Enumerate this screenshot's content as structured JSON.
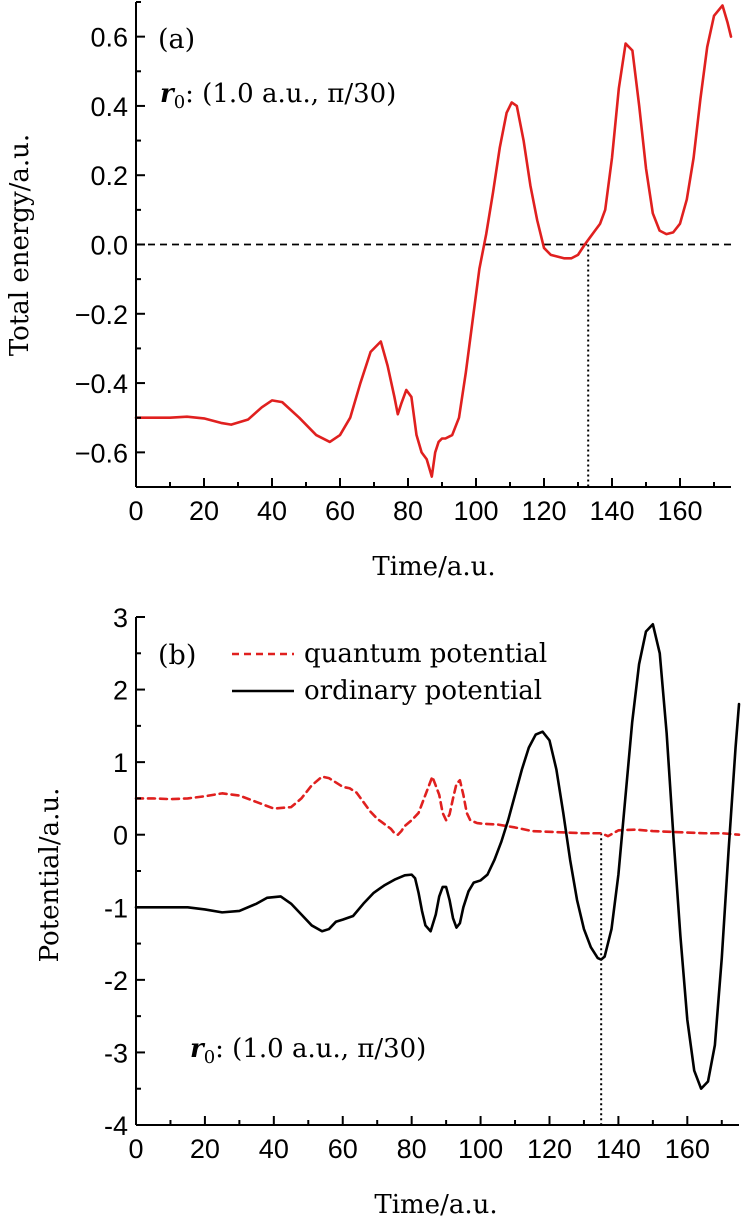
{
  "chart_data": [
    {
      "type": "line",
      "panel_label": "(a)",
      "annotation": {
        "symbol": "r",
        "subscript": "0",
        "text": ": (1.0 a.u., π/30)"
      },
      "xlabel": "Time/a.u.",
      "ylabel": "Total energy/a.u.",
      "xlim": [
        0,
        175
      ],
      "ylim": [
        -0.7,
        0.7
      ],
      "xticks": [
        0,
        20,
        40,
        60,
        80,
        100,
        120,
        140,
        160
      ],
      "yticks": [
        -0.6,
        -0.4,
        -0.2,
        0.0,
        0.2,
        0.4,
        0.6
      ],
      "ytick_labels": [
        "−0.6",
        "−0.4",
        "−0.2",
        "0.0",
        "0.2",
        "0.4",
        "0.6"
      ],
      "reference_line": {
        "y": 0.0,
        "style": "dashed"
      },
      "marker_line": {
        "x": 133,
        "style": "dotted"
      },
      "series": [
        {
          "color": "#e0201f",
          "style": "solid",
          "x": [
            0,
            5,
            10,
            15,
            20,
            25,
            28,
            33,
            37,
            40,
            43,
            48,
            53,
            57,
            60,
            63,
            66,
            69,
            72,
            74,
            76,
            77,
            78,
            79.5,
            81,
            82.5,
            84,
            85.5,
            87,
            88,
            89,
            90,
            91,
            93,
            95,
            97,
            99,
            101,
            103,
            105,
            107,
            109,
            110.5,
            112,
            114,
            116,
            118,
            120,
            122,
            124,
            126,
            128,
            130,
            132,
            133.5,
            135,
            136.5,
            138,
            140,
            142,
            144,
            146,
            148,
            150,
            152,
            154,
            156,
            158,
            160,
            162,
            164,
            166,
            168,
            170,
            172.5,
            174,
            175
          ],
          "y": [
            -0.5,
            -0.5,
            -0.5,
            -0.497,
            -0.502,
            -0.515,
            -0.52,
            -0.505,
            -0.47,
            -0.45,
            -0.455,
            -0.5,
            -0.55,
            -0.57,
            -0.55,
            -0.5,
            -0.4,
            -0.31,
            -0.28,
            -0.35,
            -0.44,
            -0.49,
            -0.46,
            -0.42,
            -0.44,
            -0.55,
            -0.6,
            -0.62,
            -0.67,
            -0.6,
            -0.57,
            -0.56,
            -0.56,
            -0.55,
            -0.5,
            -0.37,
            -0.22,
            -0.07,
            0.03,
            0.15,
            0.28,
            0.38,
            0.41,
            0.4,
            0.3,
            0.17,
            0.07,
            -0.01,
            -0.03,
            -0.035,
            -0.04,
            -0.04,
            -0.03,
            0.0,
            0.02,
            0.04,
            0.06,
            0.1,
            0.25,
            0.45,
            0.58,
            0.56,
            0.4,
            0.22,
            0.09,
            0.04,
            0.03,
            0.035,
            0.06,
            0.13,
            0.25,
            0.42,
            0.57,
            0.66,
            0.69,
            0.64,
            0.6
          ]
        }
      ]
    },
    {
      "type": "line",
      "panel_label": "(b)",
      "annotation": {
        "symbol": "r",
        "subscript": "0",
        "text": ": (1.0 a.u., π/30)"
      },
      "xlabel": "Time/a.u.",
      "ylabel": "Potential/a.u.",
      "xlim": [
        0,
        175
      ],
      "ylim": [
        -4,
        3
      ],
      "xticks": [
        0,
        20,
        40,
        60,
        80,
        100,
        120,
        140,
        160
      ],
      "yticks": [
        -4,
        -3,
        -2,
        -1,
        0,
        1,
        2,
        3
      ],
      "ytick_labels": [
        "-4",
        "-3",
        "-2",
        "-1",
        "0",
        "1",
        "2",
        "3"
      ],
      "marker_line": {
        "x": 135,
        "style": "dotted"
      },
      "legend": {
        "position": "top"
      },
      "series": [
        {
          "name": "quantum potential",
          "color": "#e0201f",
          "style": "dashed",
          "x": [
            0,
            5,
            10,
            15,
            20,
            25,
            30,
            35,
            40,
            45,
            48,
            51,
            54,
            56,
            58,
            60,
            62,
            64,
            66,
            68,
            70,
            72,
            74,
            75,
            76,
            77,
            78,
            80,
            82,
            84,
            86,
            88,
            89,
            90,
            91,
            92,
            93,
            94,
            95,
            96,
            97,
            99,
            101,
            105,
            110,
            115,
            120,
            125,
            130,
            135,
            137,
            140,
            145,
            150,
            155,
            160,
            165,
            170,
            175
          ],
          "y": [
            0.5,
            0.5,
            0.49,
            0.5,
            0.53,
            0.57,
            0.54,
            0.45,
            0.36,
            0.38,
            0.5,
            0.68,
            0.8,
            0.78,
            0.72,
            0.66,
            0.64,
            0.58,
            0.45,
            0.32,
            0.22,
            0.15,
            0.08,
            0.02,
            0.0,
            0.05,
            0.12,
            0.2,
            0.3,
            0.55,
            0.8,
            0.55,
            0.3,
            0.2,
            0.28,
            0.5,
            0.7,
            0.75,
            0.55,
            0.3,
            0.2,
            0.16,
            0.15,
            0.14,
            0.1,
            0.05,
            0.04,
            0.03,
            0.02,
            0.02,
            -0.02,
            0.06,
            0.07,
            0.05,
            0.04,
            0.03,
            0.02,
            0.02,
            0.0
          ]
        },
        {
          "name": "ordinary potential",
          "color": "#000000",
          "style": "solid",
          "x": [
            0,
            5,
            10,
            15,
            20,
            25,
            30,
            35,
            38,
            42,
            45,
            48,
            51,
            54,
            56,
            58,
            60,
            63,
            66,
            69,
            72,
            75,
            78,
            80,
            81,
            82,
            83,
            84,
            85.5,
            87,
            88,
            89,
            90,
            91,
            92,
            93,
            94,
            95,
            96.5,
            98,
            100,
            102,
            104,
            106,
            108,
            110,
            112,
            114,
            116,
            118,
            120,
            122,
            124,
            126,
            128,
            130,
            132,
            134,
            135,
            136,
            138,
            140,
            142,
            144,
            146,
            148,
            150,
            152,
            154,
            156,
            158,
            160,
            162,
            164,
            166,
            168,
            170,
            172,
            174,
            175
          ],
          "y": [
            -1.0,
            -1.0,
            -1.0,
            -1.0,
            -1.03,
            -1.07,
            -1.05,
            -0.95,
            -0.87,
            -0.85,
            -0.95,
            -1.1,
            -1.25,
            -1.33,
            -1.3,
            -1.2,
            -1.17,
            -1.12,
            -0.95,
            -0.8,
            -0.7,
            -0.62,
            -0.56,
            -0.55,
            -0.6,
            -0.8,
            -1.05,
            -1.25,
            -1.33,
            -1.1,
            -0.85,
            -0.72,
            -0.72,
            -0.9,
            -1.15,
            -1.28,
            -1.22,
            -1.0,
            -0.78,
            -0.66,
            -0.63,
            -0.55,
            -0.35,
            -0.1,
            0.2,
            0.55,
            0.9,
            1.2,
            1.38,
            1.42,
            1.3,
            0.9,
            0.3,
            -0.35,
            -0.9,
            -1.3,
            -1.55,
            -1.7,
            -1.72,
            -1.68,
            -1.3,
            -0.55,
            0.5,
            1.55,
            2.35,
            2.8,
            2.9,
            2.5,
            1.4,
            -0.05,
            -1.4,
            -2.55,
            -3.25,
            -3.5,
            -3.4,
            -2.9,
            -1.7,
            -0.2,
            1.2,
            1.8
          ]
        }
      ]
    }
  ]
}
